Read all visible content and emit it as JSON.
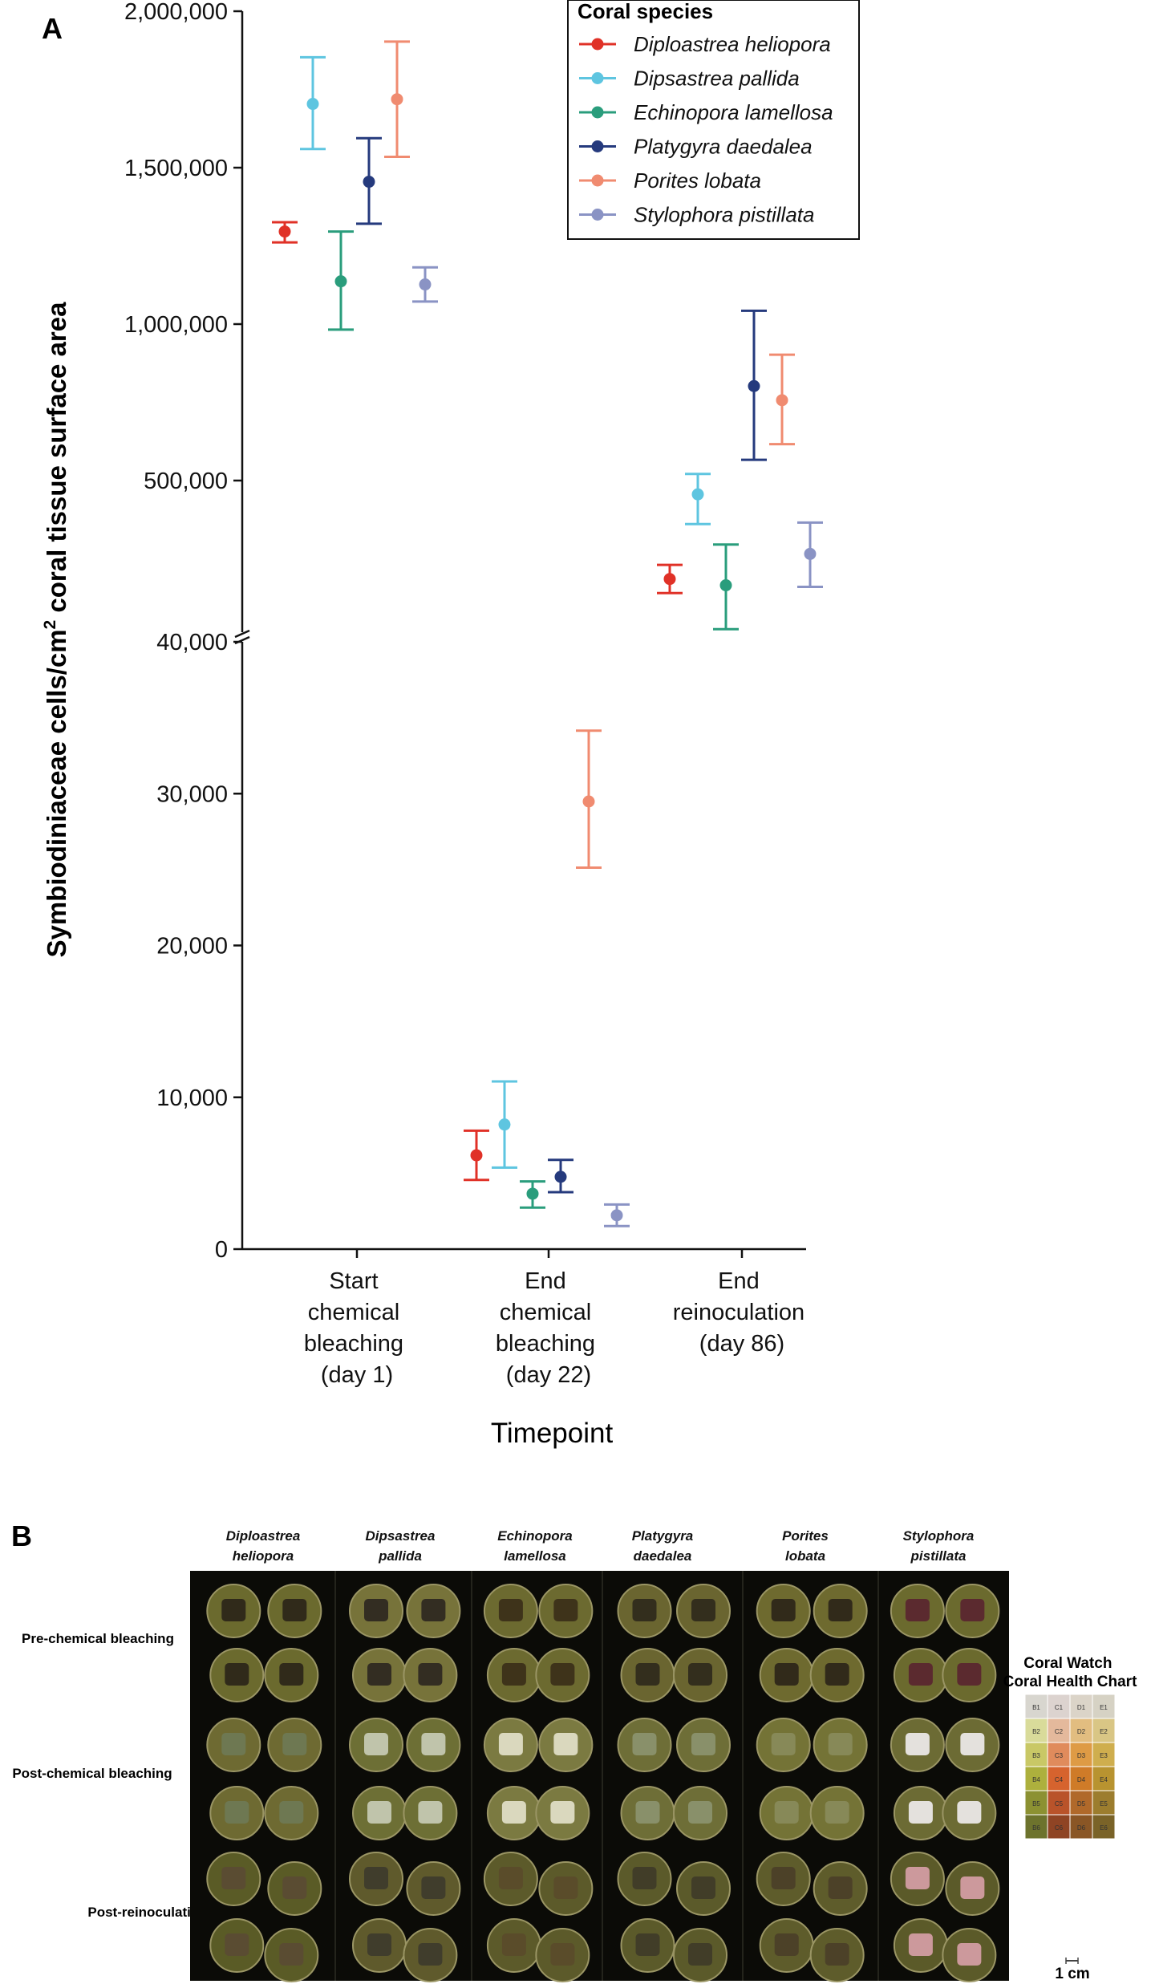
{
  "panel_a": {
    "label": "A"
  },
  "panel_b": {
    "label": "B",
    "species_headers": [
      [
        "Diploastrea",
        "heliopora"
      ],
      [
        "Dipsastrea",
        "pallida"
      ],
      [
        "Echinopora",
        "lamellosa"
      ],
      [
        "Platygyra",
        "daedalea"
      ],
      [
        "Porites",
        "lobata"
      ],
      [
        "Stylophora",
        "pistillata"
      ]
    ],
    "row_labels": [
      "Pre-chemical bleaching",
      "Post-chemical bleaching",
      "Post-reinoculation"
    ],
    "chart_title": [
      "Coral Watch",
      "Coral Health Chart"
    ],
    "chart_cells": [
      [
        "B1",
        "C1",
        "D1",
        "E1"
      ],
      [
        "B2",
        "C2",
        "D2",
        "E2"
      ],
      [
        "B3",
        "C3",
        "D3",
        "E3"
      ],
      [
        "B4",
        "C4",
        "D4",
        "E4"
      ],
      [
        "B5",
        "C5",
        "D5",
        "E5"
      ],
      [
        "B6",
        "C6",
        "D6",
        "E6"
      ]
    ],
    "chart_colors": [
      [
        "#d8d6cf",
        "#dcd3cf",
        "#dbd4c8",
        "#d6d2c4"
      ],
      [
        "#d9db9a",
        "#e4b99c",
        "#e2bd80",
        "#d9c685"
      ],
      [
        "#c9c866",
        "#e08b5c",
        "#de9b45",
        "#cfae4e"
      ],
      [
        "#adb03d",
        "#d6632e",
        "#cf7b28",
        "#b89330"
      ],
      [
        "#8c9132",
        "#b9532a",
        "#b0692a",
        "#9c7d2e"
      ],
      [
        "#6d732d",
        "#8f4424",
        "#8a5625",
        "#7a6328"
      ]
    ],
    "scale_bar_label": "1 cm"
  },
  "chart_data": {
    "type": "scatter",
    "title": "",
    "xlabel": "Timepoint",
    "ylabel": "Symbiodiniaceae cells/cm² coral tissue surface area",
    "legend_title": "Coral species",
    "legend_position": "top-right",
    "categories": [
      [
        "Start",
        "chemical",
        "bleaching",
        "(day 1)"
      ],
      [
        "End",
        "chemical",
        "bleaching",
        "(day 22)"
      ],
      [
        "End",
        "reinoculation",
        "(day 86)"
      ]
    ],
    "axis_break": {
      "lower_range": [
        0,
        40000
      ],
      "upper_range": [
        0,
        2000000
      ],
      "lower_ticks": [
        0,
        10000,
        20000,
        30000,
        40000
      ],
      "lower_tick_labels": [
        "0",
        "10,000",
        "20,000",
        "30,000",
        "40,000"
      ],
      "upper_ticks": [
        500000,
        1000000,
        1500000,
        2000000
      ],
      "upper_tick_labels": [
        "500,000",
        "1,000,000",
        "1,500,000",
        "2,000,000"
      ]
    },
    "series": [
      {
        "name": "Diploastrea heliopora",
        "color": "#e03127",
        "mean": [
          1300000,
          6100,
          190000
        ],
        "lower": [
          1265000,
          4500,
          145000
        ],
        "upper": [
          1330000,
          7700,
          235000
        ]
      },
      {
        "name": "Dipsastrea pallida",
        "color": "#5ec5e0",
        "mean": [
          1710000,
          8100,
          460000
        ],
        "lower": [
          1565000,
          5300,
          365000
        ],
        "upper": [
          1860000,
          10900,
          525000
        ]
      },
      {
        "name": "Echinopora lamellosa",
        "color": "#2a9d7c",
        "mean": [
          1140000,
          3600,
          170000
        ],
        "lower": [
          985000,
          2700,
          30000
        ],
        "upper": [
          1300000,
          4400,
          300000
        ]
      },
      {
        "name": "Platygyra daedalea",
        "color": "#253a7d",
        "mean": [
          1460000,
          4700,
          805000
        ],
        "lower": [
          1325000,
          3700,
          570000
        ],
        "upper": [
          1600000,
          5800,
          1045000
        ]
      },
      {
        "name": "Porites lobata",
        "color": "#f08b70",
        "mean": [
          1725000,
          29100,
          760000
        ],
        "lower": [
          1540000,
          24800,
          620000
        ],
        "upper": [
          1910000,
          33700,
          905000
        ]
      },
      {
        "name": "Stylophora pistillata",
        "color": "#8a93c4",
        "mean": [
          1130000,
          2200,
          270000
        ],
        "lower": [
          1075000,
          1500,
          165000
        ],
        "upper": [
          1185000,
          2900,
          370000
        ]
      }
    ]
  }
}
